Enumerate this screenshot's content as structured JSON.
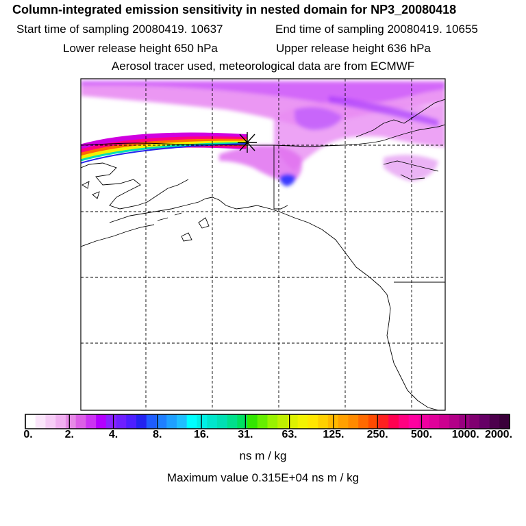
{
  "title": "Column-integrated emission sensitivity in nested domain for NP3_20080418",
  "sampling": {
    "start": "Start time of sampling 20080419. 10637",
    "end": "End time of sampling 20080419. 10655"
  },
  "release": {
    "lower": "Lower release height  650 hPa",
    "upper": "Upper release height  636 hPa"
  },
  "tracer_info": "Aerosol tracer used, meteorological data are from ECMWF",
  "colors": {
    "frame": "#000000",
    "grid": "#000000",
    "coast": "#000000"
  },
  "chart_data": {
    "type": "heatmap",
    "title": "Column-integrated emission sensitivity in nested domain for NP3_20080418",
    "units": "ns m / kg",
    "max_value_text": "Maximum value  0.315E+04 ns m / kg",
    "max_value": 3150,
    "release_marker": "X",
    "colorbar": {
      "tick_labels": [
        "0.",
        "2.",
        "4.",
        "8.",
        "16.",
        "31.",
        "63.",
        "125.",
        "250.",
        "500.",
        "1000.",
        "2000."
      ],
      "tick_values": [
        0,
        2,
        4,
        8,
        16,
        31,
        63,
        125,
        250,
        500,
        1000,
        2000
      ],
      "colors": [
        "#ffffff",
        "#fbe6fb",
        "#f6cdf6",
        "#f0b0f0",
        "#e68ae6",
        "#dc5fe6",
        "#cc33f2",
        "#b300ff",
        "#8a22ff",
        "#6e1fff",
        "#4d1fff",
        "#2323f0",
        "#1f5dff",
        "#1f7fff",
        "#1fa0ff",
        "#1fbfff",
        "#00ffff",
        "#00f0e6",
        "#00e6cc",
        "#00e0b3",
        "#00e08c",
        "#00e060",
        "#33e600",
        "#66ee00",
        "#99f200",
        "#bff000",
        "#ddf200",
        "#f2f200",
        "#ffe600",
        "#ffd000",
        "#ffb800",
        "#ffa000",
        "#ff8a00",
        "#ff6a00",
        "#ff4a00",
        "#ff2020",
        "#ff0050",
        "#ff0080",
        "#ff00a0",
        "#f000a0",
        "#e0009a",
        "#cc0090",
        "#b30088",
        "#99007f",
        "#800070",
        "#660066",
        "#4d004d",
        "#3a003a"
      ]
    }
  }
}
